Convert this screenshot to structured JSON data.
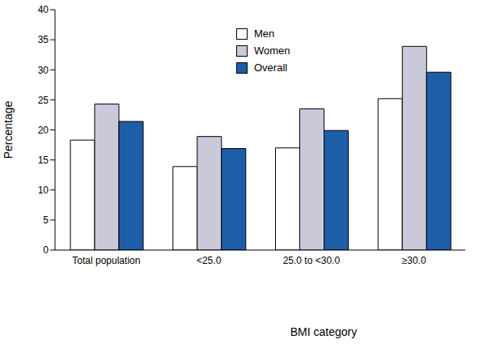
{
  "chart_data": {
    "type": "bar",
    "x_label": "BMI category",
    "y_label": "Percentage",
    "categories": [
      "Total population",
      "<25.0",
      "25.0 to <30.0",
      "≥30.0"
    ],
    "series": [
      {
        "name": "Men",
        "color": "#ffffff",
        "values": [
          18.3,
          13.9,
          17.0,
          25.2
        ]
      },
      {
        "name": "Women",
        "color": "#c9c9d9",
        "values": [
          24.3,
          18.9,
          23.5,
          33.9
        ]
      },
      {
        "name": "Overall",
        "color": "#1e5ea8",
        "values": [
          21.4,
          16.9,
          19.9,
          29.6
        ]
      }
    ],
    "ylim": [
      0,
      40
    ],
    "yticks": [
      0,
      5,
      10,
      15,
      20,
      25,
      30,
      35,
      40
    ],
    "grid": false,
    "legend": "top"
  }
}
